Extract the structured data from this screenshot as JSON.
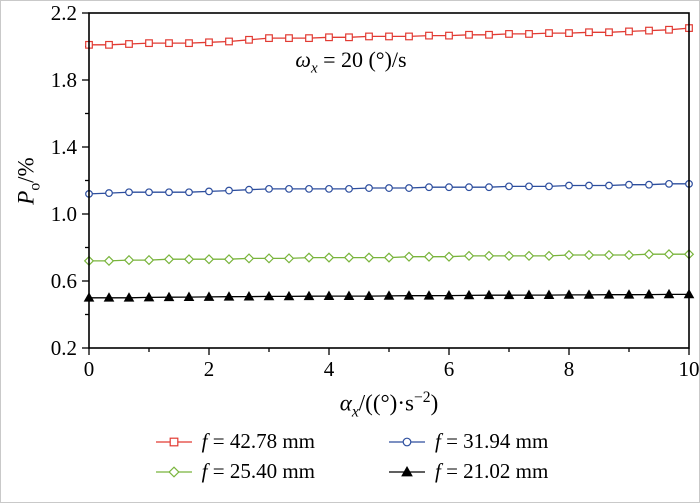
{
  "chart_data": {
    "type": "line",
    "annotation": {
      "symbol": "ω",
      "subscript": "x",
      "rest": " = 20 (°)/s"
    },
    "x_axis": {
      "symbol": "α",
      "subscript": "x",
      "rest": "/((°)·s",
      "superscript": "−2",
      "close": ")",
      "min": 0,
      "max": 10,
      "major_ticks": [
        0,
        2,
        4,
        6,
        8,
        10
      ],
      "minor_step": 1
    },
    "y_axis": {
      "symbol": "P",
      "subscript": "o",
      "rest": "/%",
      "min": 0.2,
      "max": 2.2,
      "major_ticks": [
        0.2,
        0.6,
        1.0,
        1.4,
        1.8,
        2.2
      ],
      "minor_step": 0.2
    },
    "x_start": 0,
    "x_step": 0.33333333,
    "grid": false,
    "legend_position": "bottom",
    "series": [
      {
        "name_symbol": "f",
        "name_rest": " = 42.78 mm",
        "color": "#e23b33",
        "marker": "square",
        "values": [
          2.01,
          2.01,
          2.015,
          2.02,
          2.02,
          2.02,
          2.025,
          2.03,
          2.04,
          2.05,
          2.05,
          2.05,
          2.055,
          2.055,
          2.06,
          2.06,
          2.06,
          2.065,
          2.065,
          2.07,
          2.07,
          2.075,
          2.075,
          2.08,
          2.08,
          2.085,
          2.085,
          2.09,
          2.095,
          2.1,
          2.11
        ]
      },
      {
        "name_symbol": "f",
        "name_rest": " = 31.94 mm",
        "color": "#2d4e9e",
        "marker": "circle",
        "values": [
          1.12,
          1.125,
          1.13,
          1.13,
          1.13,
          1.13,
          1.135,
          1.14,
          1.145,
          1.15,
          1.15,
          1.15,
          1.15,
          1.15,
          1.155,
          1.155,
          1.155,
          1.16,
          1.16,
          1.16,
          1.16,
          1.165,
          1.165,
          1.165,
          1.17,
          1.17,
          1.17,
          1.175,
          1.175,
          1.18,
          1.18
        ]
      },
      {
        "name_symbol": "f",
        "name_rest": " = 25.40 mm",
        "color": "#79b43c",
        "marker": "diamond",
        "values": [
          0.72,
          0.72,
          0.725,
          0.725,
          0.73,
          0.73,
          0.73,
          0.73,
          0.735,
          0.735,
          0.735,
          0.74,
          0.74,
          0.74,
          0.74,
          0.74,
          0.745,
          0.745,
          0.745,
          0.75,
          0.75,
          0.75,
          0.75,
          0.75,
          0.755,
          0.755,
          0.755,
          0.755,
          0.76,
          0.76,
          0.76
        ]
      },
      {
        "name_symbol": "f",
        "name_rest": " = 21.02 mm",
        "color": "#000000",
        "marker": "triangle",
        "values": [
          0.5,
          0.5,
          0.5,
          0.502,
          0.503,
          0.504,
          0.505,
          0.506,
          0.507,
          0.508,
          0.508,
          0.509,
          0.51,
          0.51,
          0.51,
          0.511,
          0.512,
          0.512,
          0.513,
          0.514,
          0.515,
          0.515,
          0.516,
          0.516,
          0.517,
          0.517,
          0.518,
          0.518,
          0.519,
          0.52,
          0.52
        ]
      }
    ]
  }
}
